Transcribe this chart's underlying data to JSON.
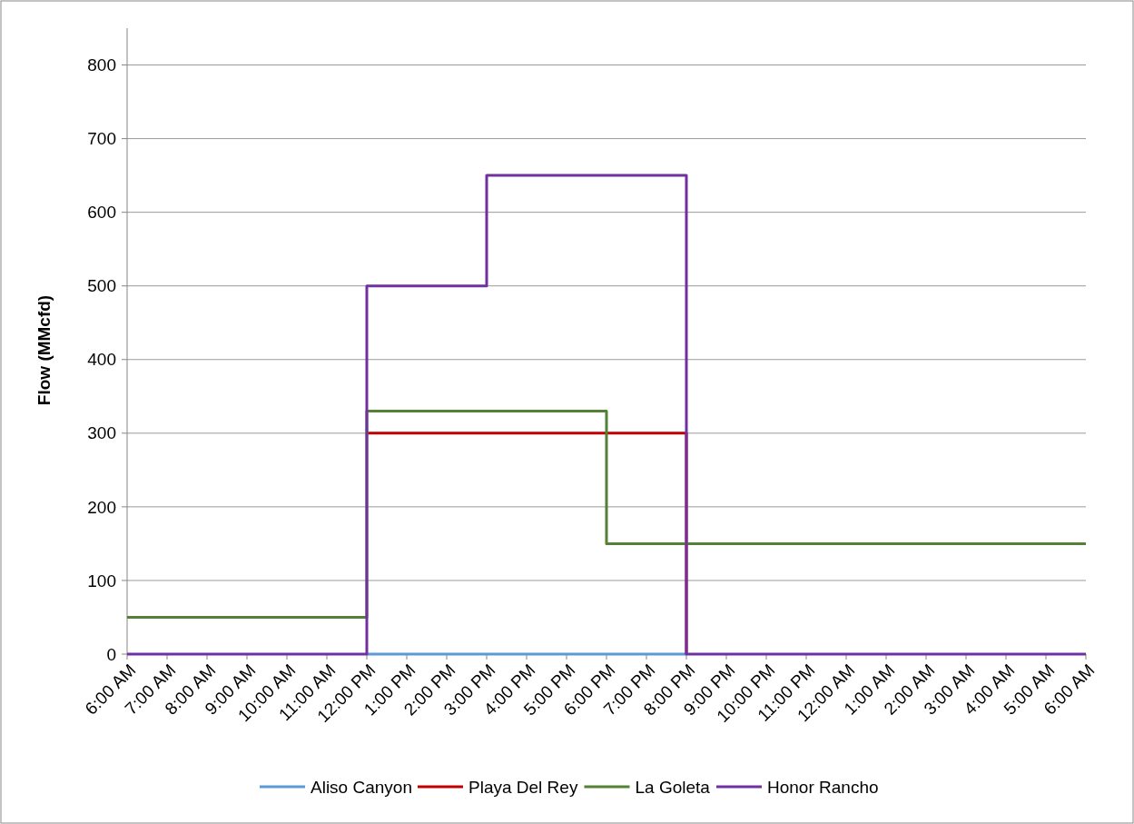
{
  "chart_data": {
    "type": "step",
    "ylabel": "Flow (MMcfd)",
    "categories": [
      "6:00 AM",
      "7:00 AM",
      "8:00 AM",
      "9:00 AM",
      "10:00 AM",
      "11:00 AM",
      "12:00 PM",
      "1:00 PM",
      "2:00 PM",
      "3:00 PM",
      "4:00 PM",
      "5:00 PM",
      "6:00 PM",
      "7:00 PM",
      "8:00 PM",
      "9:00 PM",
      "10:00 PM",
      "11:00 PM",
      "12:00 AM",
      "1:00 AM",
      "2:00 AM",
      "3:00 AM",
      "4:00 AM",
      "5:00 AM",
      "6:00 AM"
    ],
    "series": [
      {
        "name": "Aliso Canyon",
        "color": "#5b9bd5",
        "values": [
          null,
          null,
          null,
          null,
          null,
          null,
          0,
          0,
          0,
          0,
          0,
          0,
          0,
          0,
          0,
          null,
          null,
          null,
          null,
          null,
          null,
          null,
          null,
          null,
          null
        ]
      },
      {
        "name": "Playa Del Rey",
        "color": "#c00000",
        "values": [
          null,
          null,
          null,
          null,
          null,
          null,
          300,
          300,
          300,
          300,
          300,
          300,
          300,
          300,
          0,
          null,
          null,
          null,
          null,
          null,
          null,
          null,
          null,
          null,
          null
        ]
      },
      {
        "name": "La Goleta",
        "color": "#538135",
        "values": [
          50,
          50,
          50,
          50,
          50,
          50,
          330,
          330,
          330,
          330,
          330,
          330,
          150,
          150,
          150,
          150,
          150,
          150,
          150,
          150,
          150,
          150,
          150,
          150,
          150
        ]
      },
      {
        "name": "Honor Rancho",
        "color": "#7030a0",
        "values": [
          0,
          0,
          0,
          0,
          0,
          0,
          500,
          500,
          500,
          650,
          650,
          650,
          650,
          650,
          0,
          0,
          0,
          0,
          0,
          0,
          0,
          0,
          0,
          0,
          0
        ]
      }
    ],
    "ylim": [
      0,
      850
    ],
    "yticks": [
      0,
      100,
      200,
      300,
      400,
      500,
      600,
      700,
      800
    ],
    "grid": "y",
    "legend": "bottom",
    "line_style": "solid",
    "marker": "none"
  }
}
